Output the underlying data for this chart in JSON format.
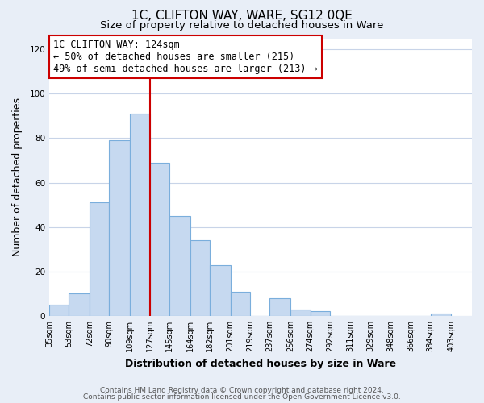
{
  "title": "1C, CLIFTON WAY, WARE, SG12 0QE",
  "subtitle": "Size of property relative to detached houses in Ware",
  "xlabel": "Distribution of detached houses by size in Ware",
  "ylabel": "Number of detached properties",
  "bar_left_edges": [
    35,
    53,
    72,
    90,
    109,
    127,
    145,
    164,
    182,
    201,
    219,
    237,
    256,
    274,
    292,
    311,
    329,
    348,
    366,
    384
  ],
  "bar_heights": [
    5,
    10,
    51,
    79,
    91,
    69,
    45,
    34,
    23,
    11,
    0,
    8,
    3,
    2,
    0,
    0,
    0,
    0,
    0,
    1
  ],
  "bar_widths": [
    18,
    19,
    18,
    19,
    18,
    18,
    19,
    18,
    19,
    18,
    18,
    19,
    18,
    18,
    19,
    18,
    19,
    18,
    18,
    19
  ],
  "tick_labels": [
    "35sqm",
    "53sqm",
    "72sqm",
    "90sqm",
    "109sqm",
    "127sqm",
    "145sqm",
    "164sqm",
    "182sqm",
    "201sqm",
    "219sqm",
    "237sqm",
    "256sqm",
    "274sqm",
    "292sqm",
    "311sqm",
    "329sqm",
    "348sqm",
    "366sqm",
    "384sqm",
    "403sqm"
  ],
  "tick_positions": [
    35,
    53,
    72,
    90,
    109,
    127,
    145,
    164,
    182,
    201,
    219,
    237,
    256,
    274,
    292,
    311,
    329,
    348,
    366,
    384,
    403
  ],
  "bar_color": "#c6d9f0",
  "bar_edge_color": "#7aaedc",
  "vline_x": 127,
  "vline_color": "#cc0000",
  "annotation_line1": "1C CLIFTON WAY: 124sqm",
  "annotation_line2": "← 50% of detached houses are smaller (215)",
  "annotation_line3": "49% of semi-detached houses are larger (213) →",
  "ylim": [
    0,
    125
  ],
  "yticks": [
    0,
    20,
    40,
    60,
    80,
    100,
    120
  ],
  "footer_line1": "Contains HM Land Registry data © Crown copyright and database right 2024.",
  "footer_line2": "Contains public sector information licensed under the Open Government Licence v3.0.",
  "bg_color": "#e8eef7",
  "plot_bg_color": "#ffffff",
  "grid_color": "#c8d4e8",
  "title_fontsize": 11,
  "subtitle_fontsize": 9.5,
  "axis_label_fontsize": 9,
  "tick_fontsize": 7,
  "footer_fontsize": 6.5,
  "annotation_fontsize": 8.5
}
